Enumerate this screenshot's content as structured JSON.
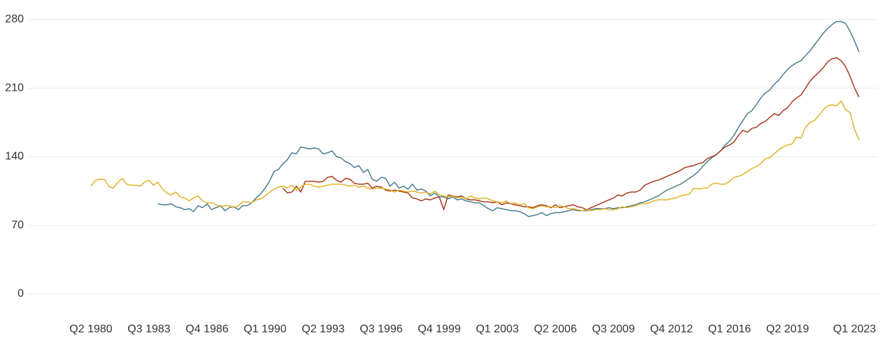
{
  "chart_data": {
    "type": "line",
    "categories": [
      "Q2 1980",
      null,
      null,
      null,
      null,
      null,
      null,
      null,
      null,
      null,
      null,
      null,
      null,
      "Q3 1983",
      null,
      null,
      null,
      null,
      null,
      null,
      null,
      null,
      null,
      null,
      null,
      null,
      "Q4 1986",
      null,
      null,
      null,
      null,
      null,
      null,
      null,
      null,
      null,
      null,
      null,
      null,
      "Q1 1990",
      null,
      null,
      null,
      null,
      null,
      null,
      null,
      null,
      null,
      null,
      null,
      null,
      "Q2 1993",
      null,
      null,
      null,
      null,
      null,
      null,
      null,
      null,
      null,
      null,
      null,
      null,
      "Q3 1996",
      null,
      null,
      null,
      null,
      null,
      null,
      null,
      null,
      null,
      null,
      null,
      null,
      "Q4 1999",
      null,
      null,
      null,
      null,
      null,
      null,
      null,
      null,
      null,
      null,
      null,
      null,
      "Q1 2003",
      null,
      null,
      null,
      null,
      null,
      null,
      null,
      null,
      null,
      null,
      null,
      null,
      "Q2 2006",
      null,
      null,
      null,
      null,
      null,
      null,
      null,
      null,
      null,
      null,
      null,
      null,
      "Q3 2009",
      null,
      null,
      null,
      null,
      null,
      null,
      null,
      null,
      null,
      null,
      null,
      null,
      "Q4 2012",
      null,
      null,
      null,
      null,
      null,
      null,
      null,
      null,
      null,
      null,
      null,
      null,
      "Q1 2016",
      null,
      null,
      null,
      null,
      null,
      null,
      null,
      null,
      null,
      null,
      null,
      null,
      "Q2 2019",
      null,
      null,
      null,
      null,
      null,
      null,
      null,
      null,
      null,
      null,
      null,
      null,
      null,
      null,
      "Q1 2023",
      null
    ],
    "series": [
      {
        "color": "#4a7d8f",
        "values": [
          null,
          null,
          null,
          null,
          null,
          null,
          null,
          null,
          null,
          null,
          null,
          null,
          null,
          null,
          null,
          92,
          91,
          91,
          92,
          89,
          88,
          86,
          87,
          84,
          90,
          88,
          92,
          86,
          88,
          90,
          85,
          88,
          89,
          86,
          90,
          90,
          93,
          98,
          102,
          108,
          115,
          125,
          127,
          133,
          137,
          144,
          143,
          150,
          149,
          148,
          149,
          148,
          143,
          144,
          146,
          140,
          139,
          135,
          133,
          129,
          131,
          124,
          127,
          117,
          115,
          119,
          118,
          110,
          114,
          108,
          110,
          107,
          112,
          106,
          107,
          105,
          100,
          103,
          99,
          99,
          97,
          99,
          96,
          97,
          95,
          94,
          93,
          93,
          90,
          87,
          85,
          88,
          87,
          86,
          85,
          85,
          84,
          82,
          79,
          80,
          81,
          83,
          80,
          82,
          83,
          83,
          84,
          85,
          86,
          85,
          85,
          85,
          86,
          87,
          87,
          87,
          88,
          87,
          88,
          88,
          89,
          90,
          91,
          93,
          94,
          96,
          98,
          100,
          103,
          106,
          108,
          110,
          112,
          115,
          118,
          121,
          125,
          130,
          135,
          139,
          142,
          146,
          152,
          156,
          162,
          170,
          177,
          184,
          187,
          193,
          200,
          205,
          208,
          214,
          218,
          224,
          229,
          233,
          236,
          238,
          243,
          248,
          254,
          260,
          266,
          271,
          275,
          278,
          278,
          276,
          268,
          258,
          247
        ]
      },
      {
        "color": "#a8391c",
        "values": [
          null,
          null,
          null,
          null,
          null,
          null,
          null,
          null,
          null,
          null,
          null,
          null,
          null,
          null,
          null,
          null,
          null,
          null,
          null,
          null,
          null,
          null,
          null,
          null,
          null,
          null,
          null,
          null,
          null,
          null,
          null,
          null,
          null,
          null,
          null,
          null,
          null,
          null,
          null,
          null,
          null,
          null,
          null,
          108,
          103,
          104,
          110,
          104,
          115,
          115,
          115,
          114,
          115,
          119,
          120,
          116,
          114,
          118,
          117,
          113,
          112,
          112,
          113,
          108,
          110,
          109,
          106,
          105,
          106,
          105,
          104,
          103,
          98,
          97,
          95,
          97,
          96,
          98,
          99,
          86,
          101,
          100,
          99,
          100,
          97,
          96,
          96,
          95,
          94,
          94,
          93,
          94,
          91,
          93,
          92,
          91,
          90,
          89,
          89,
          88,
          90,
          91,
          90,
          88,
          91,
          88,
          89,
          90,
          91,
          89,
          88,
          86,
          88,
          90,
          92,
          94,
          96,
          98,
          101,
          100,
          103,
          104,
          104,
          106,
          111,
          113,
          115,
          116,
          118,
          120,
          122,
          124,
          126,
          129,
          130,
          131,
          133,
          134,
          138,
          140,
          142,
          146,
          150,
          152,
          155,
          162,
          167,
          165,
          169,
          170,
          174,
          176,
          180,
          184,
          182,
          187,
          190,
          196,
          200,
          203,
          210,
          217,
          222,
          226,
          231,
          237,
          240,
          241,
          238,
          232,
          222,
          210,
          201
        ]
      },
      {
        "color": "#e0b227",
        "values": [
          110,
          116,
          117,
          117,
          110,
          108,
          114,
          118,
          112,
          111,
          111,
          110,
          114,
          116,
          111,
          114,
          107,
          103,
          101,
          104,
          99,
          98,
          95,
          98,
          100,
          95,
          93,
          93,
          91,
          89,
          90,
          90,
          88,
          90,
          94,
          94,
          93,
          96,
          97,
          100,
          104,
          107,
          109,
          110,
          108,
          111,
          106,
          109,
          112,
          112,
          110,
          109,
          110,
          111,
          112,
          112,
          112,
          111,
          110,
          111,
          109,
          110,
          108,
          107,
          108,
          108,
          107,
          106,
          104,
          106,
          105,
          104,
          105,
          104,
          103,
          104,
          102,
          105,
          101,
          100,
          99,
          100,
          98,
          99,
          97,
          100,
          98,
          97,
          98,
          97,
          95,
          94,
          93,
          95,
          92,
          93,
          91,
          92,
          88,
          87,
          89,
          90,
          89,
          89,
          88,
          90,
          89,
          87,
          87,
          86,
          85,
          86,
          85,
          86,
          86,
          87,
          86,
          86,
          87,
          89,
          88,
          89,
          90,
          92,
          92,
          93,
          95,
          96,
          96,
          96,
          97,
          98,
          100,
          101,
          102,
          108,
          107,
          108,
          108,
          112,
          113,
          112,
          112,
          115,
          119,
          120,
          122,
          125,
          128,
          130,
          133,
          138,
          139,
          143,
          147,
          150,
          152,
          153,
          160,
          159,
          170,
          175,
          177,
          182,
          188,
          192,
          193,
          192,
          197,
          188,
          185,
          168,
          157
        ]
      }
    ],
    "ylim": [
      0,
      280
    ],
    "yticks": [
      0,
      70,
      140,
      210,
      280
    ],
    "grid": true
  }
}
